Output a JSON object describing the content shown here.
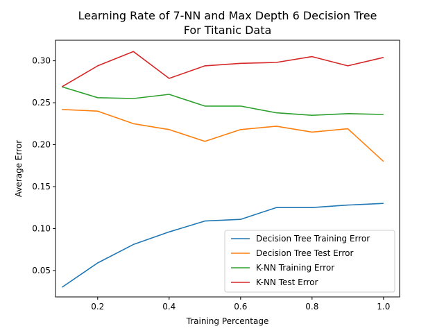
{
  "chart_data": {
    "type": "line",
    "title_lines": [
      "Learning Rate of 7-NN and Max Depth 6 Decision Tree",
      "For Titanic Data"
    ],
    "xlabel": "Training Percentage",
    "ylabel": "Average Error",
    "xlim": [
      0.082,
      1.045
    ],
    "ylim": [
      0.0185,
      0.3245
    ],
    "xticks": [
      0.2,
      0.4,
      0.6,
      0.8,
      1.0
    ],
    "xtick_labels": [
      "0.2",
      "0.4",
      "0.6",
      "0.8",
      "1.0"
    ],
    "yticks": [
      0.05,
      0.1,
      0.15,
      0.2,
      0.25,
      0.3
    ],
    "ytick_labels": [
      "0.05",
      "0.10",
      "0.15",
      "0.20",
      "0.25",
      "0.30"
    ],
    "grid": false,
    "legend_position": "bottom-right",
    "x": [
      0.1,
      0.2,
      0.3,
      0.4,
      0.5,
      0.6,
      0.7,
      0.8,
      0.9,
      1.0
    ],
    "series": [
      {
        "name": "Decision Tree Training Error",
        "color": "#1f77b4",
        "values": [
          0.03,
          0.059,
          0.081,
          0.096,
          0.109,
          0.111,
          0.125,
          0.125,
          0.128,
          0.13
        ]
      },
      {
        "name": "Decision Tree Test Error",
        "color": "#ff7f0e",
        "values": [
          0.242,
          0.24,
          0.225,
          0.218,
          0.204,
          0.218,
          0.222,
          0.215,
          0.219,
          0.18
        ]
      },
      {
        "name": "K-NN Training Error",
        "color": "#2ca02c",
        "values": [
          0.269,
          0.256,
          0.255,
          0.26,
          0.246,
          0.246,
          0.238,
          0.235,
          0.237,
          0.236
        ]
      },
      {
        "name": "K-NN Test Error",
        "color": "#d62728",
        "values": [
          0.269,
          0.294,
          0.311,
          0.279,
          0.294,
          0.297,
          0.298,
          0.305,
          0.294,
          0.304
        ]
      }
    ]
  }
}
